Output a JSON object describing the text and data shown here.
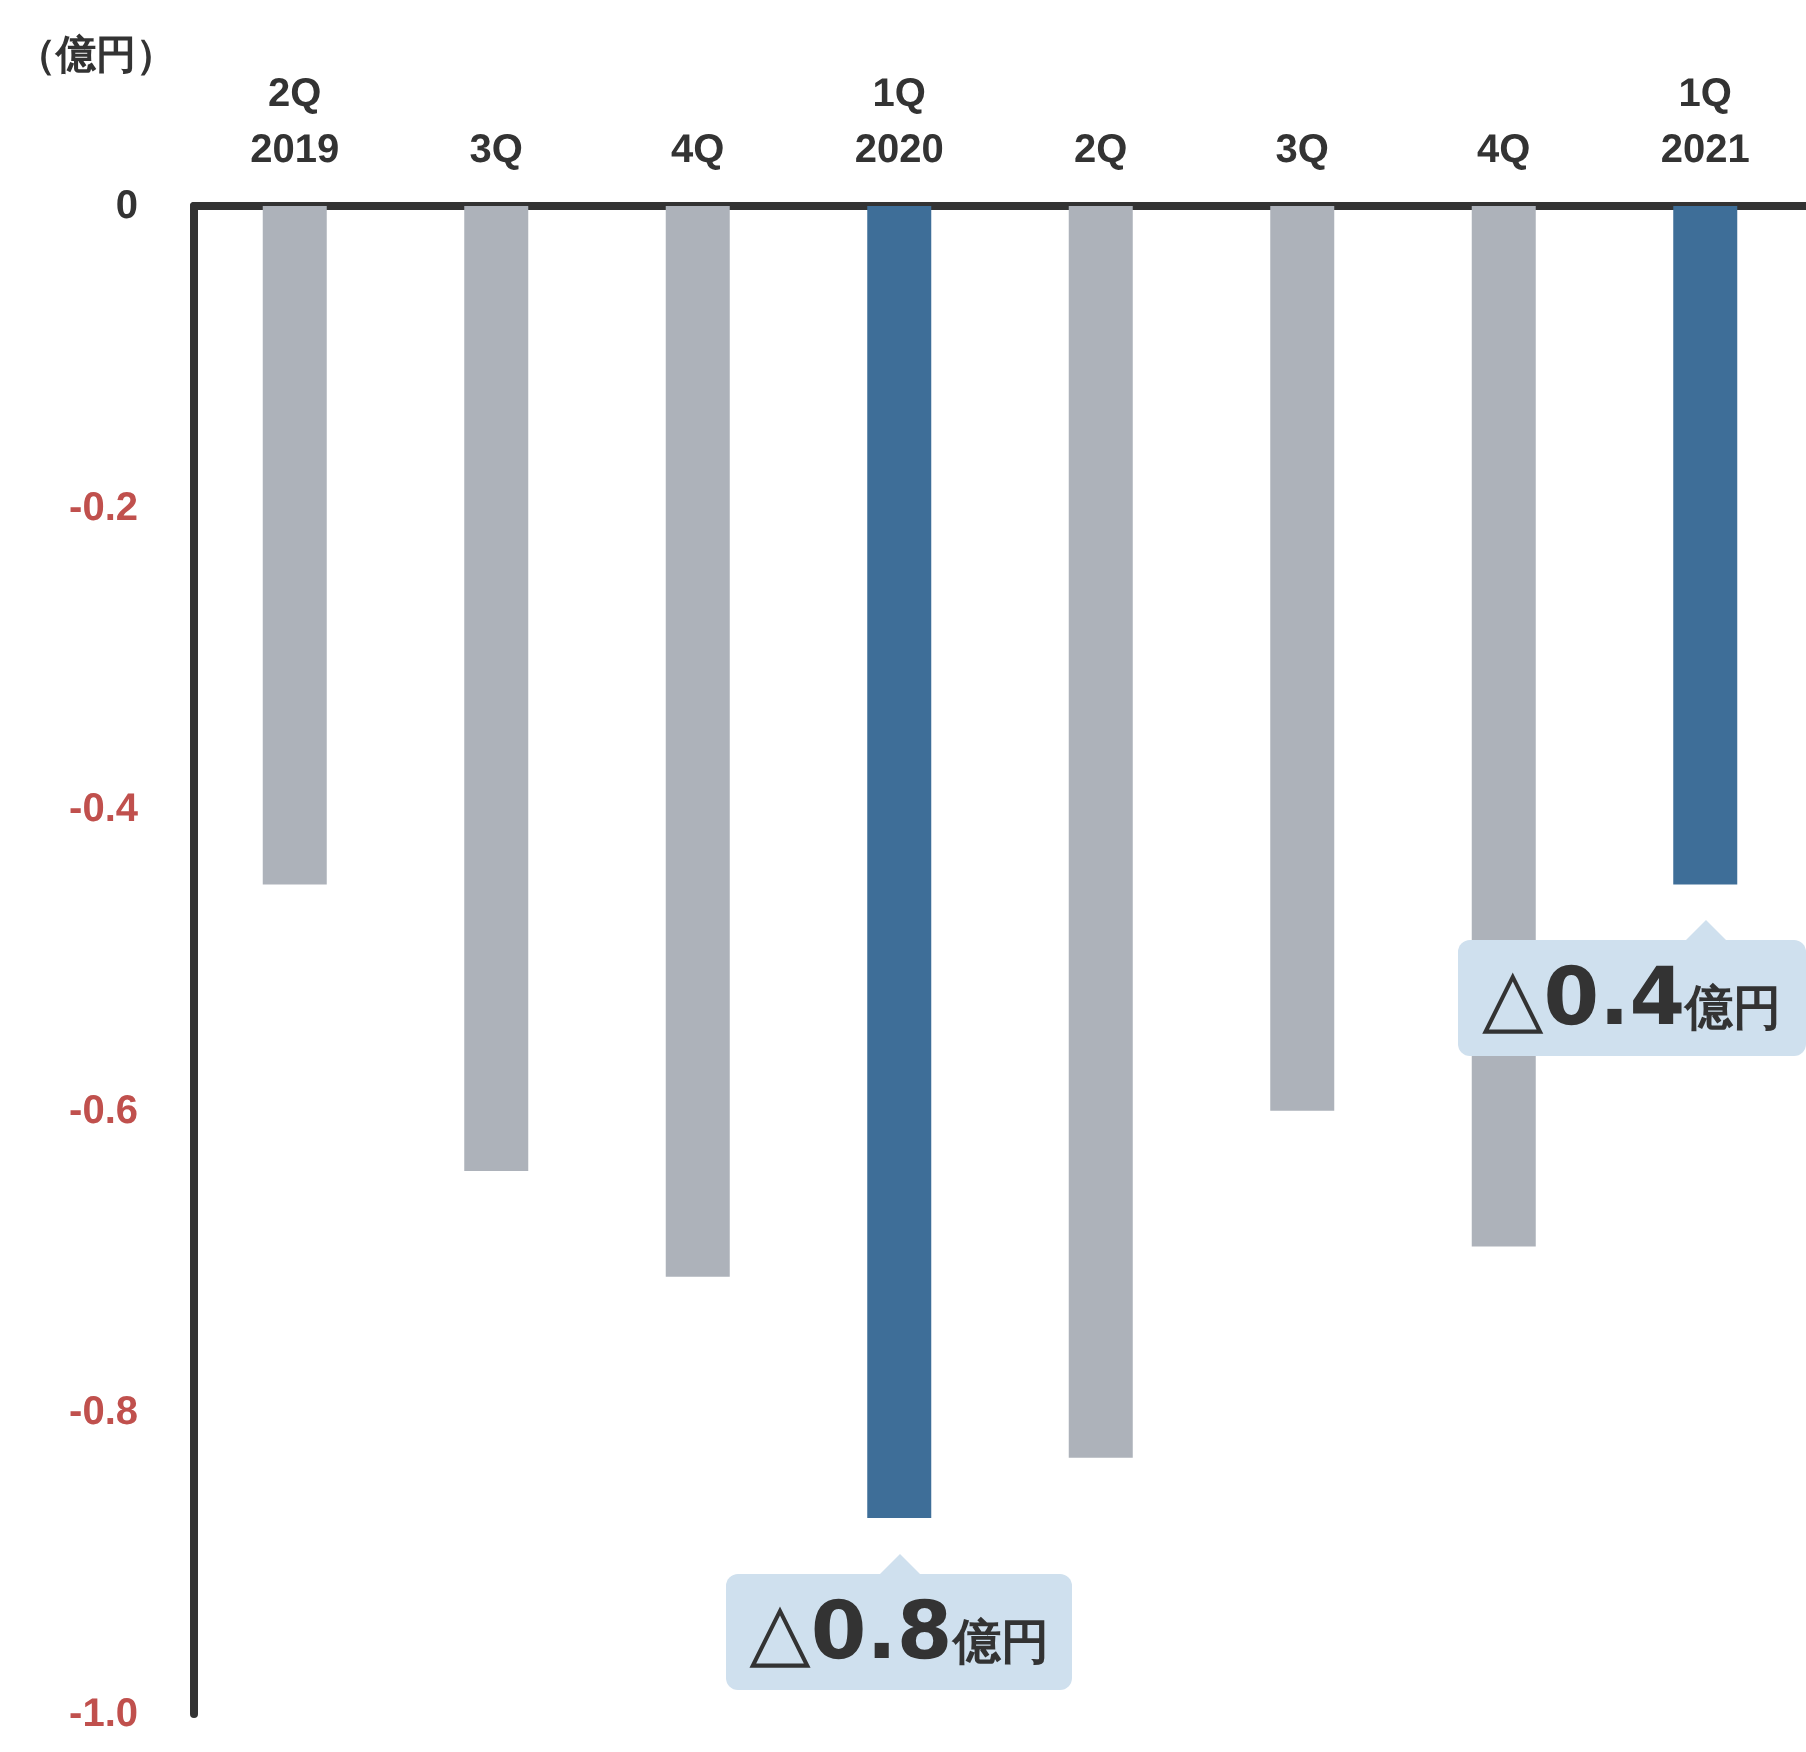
{
  "chart_data": {
    "type": "bar",
    "ylabel": "（億円）",
    "categories": [
      "2Q\n2019",
      "3Q",
      "4Q",
      "1Q\n2020",
      "2Q",
      "3Q",
      "4Q",
      "1Q\n2021"
    ],
    "values": [
      -0.45,
      -0.64,
      -0.71,
      -0.87,
      -0.83,
      -0.6,
      -0.69,
      -0.45
    ],
    "colors": [
      "#adb2ba",
      "#adb2ba",
      "#adb2ba",
      "#3e6e98",
      "#adb2ba",
      "#adb2ba",
      "#adb2ba",
      "#3e6e98"
    ],
    "ylim": [
      -1,
      0
    ],
    "yticks": [
      0,
      -0.2,
      -0.4,
      -0.6,
      -0.8,
      {
        "value": -1,
        "label": "-1.0"
      }
    ],
    "grid": false,
    "annotations": [
      {
        "text": "△0.8億円",
        "x": "1Q\n2020",
        "y": -0.87
      },
      {
        "text": "△0.4億円",
        "x": "1Q\n2021",
        "y": -0.45
      }
    ]
  }
}
